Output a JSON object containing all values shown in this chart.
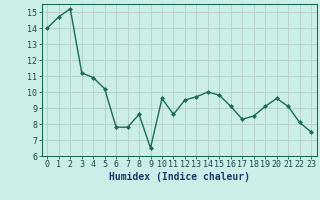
{
  "x": [
    0,
    1,
    2,
    3,
    4,
    5,
    6,
    7,
    8,
    9,
    10,
    11,
    12,
    13,
    14,
    15,
    16,
    17,
    18,
    19,
    20,
    21,
    22,
    23
  ],
  "y": [
    14.0,
    14.7,
    15.2,
    11.2,
    10.9,
    10.2,
    7.8,
    7.8,
    8.6,
    6.5,
    9.6,
    8.6,
    9.5,
    9.7,
    10.0,
    9.8,
    9.1,
    8.3,
    8.5,
    9.1,
    9.6,
    9.1,
    8.1,
    7.5
  ],
  "line_color": "#1a6b5a",
  "marker": "D",
  "marker_size": 2.0,
  "line_width": 1.0,
  "bg_color": "#cceee8",
  "grid_color_major": "#b0c8c0",
  "grid_color_minor": "#c8dedd",
  "xlabel": "Humidex (Indice chaleur)",
  "xlim": [
    -0.5,
    23.5
  ],
  "ylim": [
    6,
    15.5
  ],
  "yticks": [
    6,
    7,
    8,
    9,
    10,
    11,
    12,
    13,
    14,
    15
  ],
  "xticks": [
    0,
    1,
    2,
    3,
    4,
    5,
    6,
    7,
    8,
    9,
    10,
    11,
    12,
    13,
    14,
    15,
    16,
    17,
    18,
    19,
    20,
    21,
    22,
    23
  ],
  "tick_fontsize": 6.0,
  "xlabel_fontsize": 7.0,
  "spine_color": "#1a6b5a"
}
